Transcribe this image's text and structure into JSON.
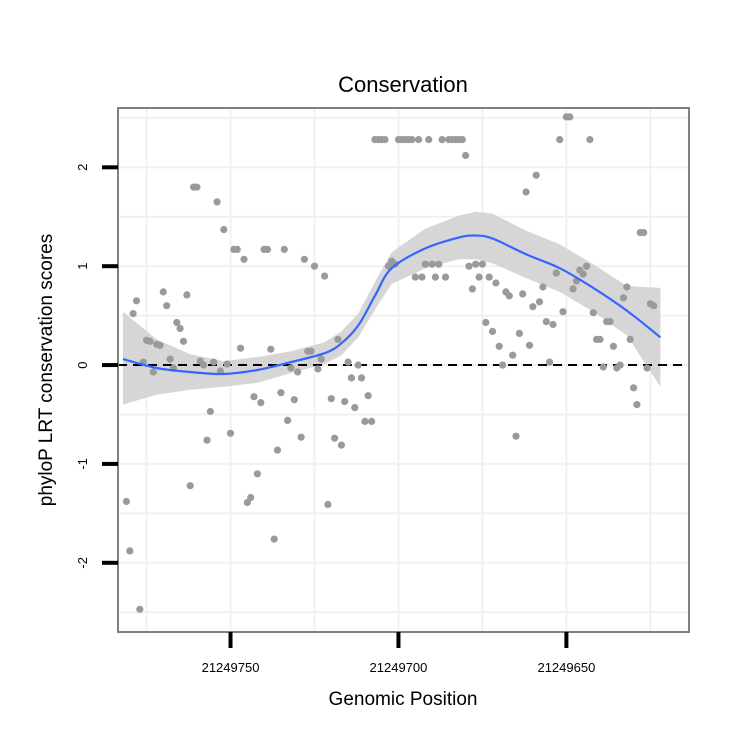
{
  "chart_data": {
    "type": "scatter",
    "title": "Conservation",
    "xlabel": "Genomic Position",
    "ylabel": "phyloP LRT conservation scores",
    "x_reversed": true,
    "xlim": [
      21249783.5,
      21249613.5
    ],
    "ylim": [
      -2.7,
      2.6
    ],
    "x_ticks": [
      21249750,
      21249700,
      21249650
    ],
    "x_tick_labels": [
      "21249750",
      "21249700",
      "21249650"
    ],
    "y_ticks": [
      -2,
      -1,
      0,
      1,
      2
    ],
    "y_tick_labels": [
      "-2",
      "-1",
      "0",
      "1",
      "2"
    ],
    "grid": true,
    "reference_line": {
      "y": 0,
      "style": "dashed",
      "color": "#000000"
    },
    "colors": {
      "points": "#9a9a9a",
      "smooth": "#3366ff",
      "band": "#d2d2d2",
      "panel_border": "#808080",
      "grid": "#f0f0f0"
    },
    "points": [
      [
        21249781,
        -1.38
      ],
      [
        21249780,
        -1.88
      ],
      [
        21249779,
        0.52
      ],
      [
        21249778,
        0.65
      ],
      [
        21249777,
        -2.47
      ],
      [
        21249776,
        0.03
      ],
      [
        21249775,
        0.25
      ],
      [
        21249774,
        0.24
      ],
      [
        21249773,
        -0.07
      ],
      [
        21249772,
        0.21
      ],
      [
        21249771,
        0.2
      ],
      [
        21249770,
        0.74
      ],
      [
        21249769,
        0.6
      ],
      [
        21249768,
        0.06
      ],
      [
        21249767,
        -0.03
      ],
      [
        21249766,
        0.43
      ],
      [
        21249765,
        0.37
      ],
      [
        21249764,
        0.24
      ],
      [
        21249763,
        0.71
      ],
      [
        21249762,
        -1.22
      ],
      [
        21249761,
        1.8
      ],
      [
        21249760,
        1.8
      ],
      [
        21249759,
        0.04
      ],
      [
        21249758,
        0.0
      ],
      [
        21249757,
        -0.76
      ],
      [
        21249756,
        -0.47
      ],
      [
        21249755,
        0.03
      ],
      [
        21249754,
        1.65
      ],
      [
        21249753,
        -0.06
      ],
      [
        21249752,
        1.37
      ],
      [
        21249751,
        0.01
      ],
      [
        21249750,
        -0.69
      ],
      [
        21249749,
        1.17
      ],
      [
        21249748,
        1.17
      ],
      [
        21249747,
        0.17
      ],
      [
        21249746,
        1.07
      ],
      [
        21249745,
        -1.39
      ],
      [
        21249744,
        -1.34
      ],
      [
        21249743,
        -0.32
      ],
      [
        21249742,
        -1.1
      ],
      [
        21249741,
        -0.38
      ],
      [
        21249740,
        1.17
      ],
      [
        21249739,
        1.17
      ],
      [
        21249738,
        0.16
      ],
      [
        21249737,
        -1.76
      ],
      [
        21249736,
        -0.86
      ],
      [
        21249735,
        -0.28
      ],
      [
        21249734,
        1.17
      ],
      [
        21249733,
        -0.56
      ],
      [
        21249732,
        -0.03
      ],
      [
        21249731,
        -0.35
      ],
      [
        21249730,
        -0.07
      ],
      [
        21249729,
        -0.73
      ],
      [
        21249728,
        1.07
      ],
      [
        21249727,
        0.14
      ],
      [
        21249726,
        0.14
      ],
      [
        21249725,
        1.0
      ],
      [
        21249724,
        -0.04
      ],
      [
        21249723,
        0.06
      ],
      [
        21249722,
        0.9
      ],
      [
        21249721,
        -1.41
      ],
      [
        21249720,
        -0.34
      ],
      [
        21249719,
        -0.74
      ],
      [
        21249718,
        0.26
      ],
      [
        21249717,
        -0.81
      ],
      [
        21249716,
        -0.37
      ],
      [
        21249715,
        0.03
      ],
      [
        21249714,
        -0.13
      ],
      [
        21249713,
        -0.43
      ],
      [
        21249712,
        0.0
      ],
      [
        21249711,
        -0.13
      ],
      [
        21249710,
        -0.57
      ],
      [
        21249709,
        -0.31
      ],
      [
        21249708,
        -0.57
      ],
      [
        21249707,
        2.28
      ],
      [
        21249706,
        2.28
      ],
      [
        21249705,
        2.28
      ],
      [
        21249704,
        2.28
      ],
      [
        21249703,
        1.0
      ],
      [
        21249702,
        1.05
      ],
      [
        21249701,
        1.02
      ],
      [
        21249700,
        2.28
      ],
      [
        21249699,
        2.28
      ],
      [
        21249698,
        2.28
      ],
      [
        21249697,
        2.28
      ],
      [
        21249696,
        2.28
      ],
      [
        21249695,
        0.89
      ],
      [
        21249694,
        2.28
      ],
      [
        21249693,
        0.89
      ],
      [
        21249692,
        1.02
      ],
      [
        21249691,
        2.28
      ],
      [
        21249690,
        1.02
      ],
      [
        21249689,
        0.89
      ],
      [
        21249688,
        1.02
      ],
      [
        21249687,
        2.28
      ],
      [
        21249686,
        0.89
      ],
      [
        21249685,
        2.28
      ],
      [
        21249684,
        2.28
      ],
      [
        21249683,
        2.28
      ],
      [
        21249682,
        2.28
      ],
      [
        21249681,
        2.28
      ],
      [
        21249680,
        2.12
      ],
      [
        21249679,
        1.0
      ],
      [
        21249678,
        0.77
      ],
      [
        21249677,
        1.02
      ],
      [
        21249676,
        0.89
      ],
      [
        21249675,
        1.02
      ],
      [
        21249674,
        0.43
      ],
      [
        21249673,
        0.89
      ],
      [
        21249672,
        0.34
      ],
      [
        21249671,
        0.83
      ],
      [
        21249670,
        0.19
      ],
      [
        21249669,
        0.0
      ],
      [
        21249668,
        0.74
      ],
      [
        21249667,
        0.7
      ],
      [
        21249666,
        0.1
      ],
      [
        21249665,
        -0.72
      ],
      [
        21249664,
        0.32
      ],
      [
        21249663,
        0.72
      ],
      [
        21249662,
        1.75
      ],
      [
        21249661,
        0.2
      ],
      [
        21249660,
        0.59
      ],
      [
        21249659,
        1.92
      ],
      [
        21249658,
        0.64
      ],
      [
        21249657,
        0.79
      ],
      [
        21249656,
        0.44
      ],
      [
        21249655,
        0.03
      ],
      [
        21249654,
        0.41
      ],
      [
        21249653,
        0.93
      ],
      [
        21249652,
        2.28
      ],
      [
        21249651,
        0.54
      ],
      [
        21249650,
        2.51
      ],
      [
        21249649,
        2.51
      ],
      [
        21249648,
        0.77
      ],
      [
        21249647,
        0.85
      ],
      [
        21249646,
        0.96
      ],
      [
        21249645,
        0.92
      ],
      [
        21249644,
        1.0
      ],
      [
        21249643,
        2.28
      ],
      [
        21249642,
        0.53
      ],
      [
        21249641,
        0.26
      ],
      [
        21249640,
        0.26
      ],
      [
        21249639,
        -0.02
      ],
      [
        21249638,
        0.44
      ],
      [
        21249637,
        0.44
      ],
      [
        21249636,
        0.19
      ],
      [
        21249635,
        -0.03
      ],
      [
        21249634,
        0.0
      ],
      [
        21249633,
        0.68
      ],
      [
        21249632,
        0.79
      ],
      [
        21249631,
        0.26
      ],
      [
        21249630,
        -0.23
      ],
      [
        21249629,
        -0.4
      ],
      [
        21249628,
        1.34
      ],
      [
        21249627,
        1.34
      ],
      [
        21249626,
        -0.03
      ],
      [
        21249625,
        0.62
      ],
      [
        21249624,
        0.6
      ]
    ],
    "smooth": {
      "x": [
        21249782,
        21249772,
        21249762,
        21249752,
        21249742,
        21249732,
        21249722,
        21249717,
        21249712,
        21249707,
        21249702,
        21249692,
        21249682,
        21249677,
        21249672,
        21249662,
        21249652,
        21249642,
        21249632,
        21249622
      ],
      "y": [
        0.06,
        -0.03,
        -0.07,
        -0.09,
        -0.05,
        0.03,
        0.12,
        0.22,
        0.4,
        0.7,
        0.98,
        1.18,
        1.29,
        1.31,
        1.28,
        1.12,
        0.98,
        0.78,
        0.55,
        0.28
      ],
      "lower": [
        -0.4,
        -0.3,
        -0.25,
        -0.22,
        -0.18,
        -0.08,
        0.01,
        0.1,
        0.28,
        0.56,
        0.82,
        0.98,
        1.07,
        1.07,
        1.03,
        0.88,
        0.74,
        0.54,
        0.3,
        -0.22
      ],
      "upper": [
        0.54,
        0.26,
        0.11,
        0.04,
        0.08,
        0.14,
        0.23,
        0.34,
        0.52,
        0.84,
        1.14,
        1.38,
        1.51,
        1.55,
        1.53,
        1.36,
        1.22,
        1.02,
        0.8,
        0.78
      ]
    }
  }
}
